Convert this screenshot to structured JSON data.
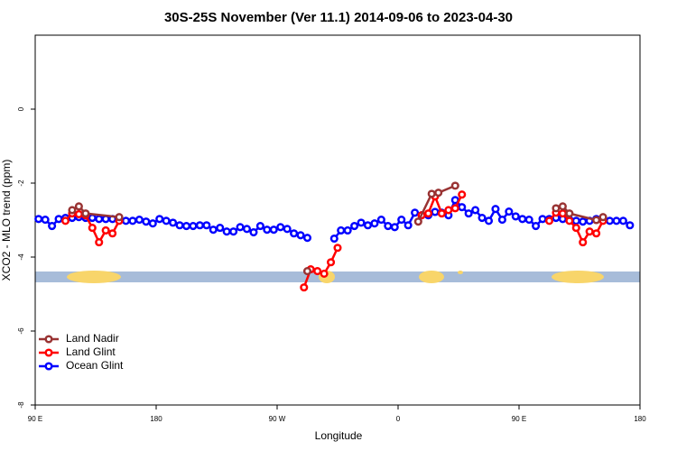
{
  "chart_data": {
    "type": "line",
    "title": "30S-25S November (Ver 11.1)   2014-09-06 to 2023-04-30",
    "x_label": "Longitude",
    "y_label": "XCO2 - MLO trend (ppm)",
    "xlim": [
      90,
      540
    ],
    "ylim": [
      -8,
      2
    ],
    "xticks": [
      {
        "value": 90,
        "label": "90 E"
      },
      180,
      {
        "value": 270,
        "label": "90 W"
      },
      {
        "value": 360,
        "label": "0"
      },
      {
        "value": 450,
        "label": "90 E"
      },
      {
        "value": 540,
        "label": "180"
      }
    ],
    "yticks": [
      -8,
      -6,
      -4,
      -2,
      0
    ],
    "legend": "bottom-left",
    "series": [
      {
        "name": "Land Nadir",
        "color": "#993333",
        "x": [
          117.5,
          122.5,
          127.5,
          152.5,
          200,
          292.5,
          300,
          375,
          385,
          390,
          402.5,
          450,
          477.5,
          482.5,
          487.5,
          507.5,
          512.5
        ],
        "values": [
          -2.73,
          -2.63,
          -2.82,
          -2.92,
          null,
          -4.38,
          null,
          -3.04,
          -2.29,
          -2.26,
          -2.07,
          null,
          -2.68,
          -2.63,
          -2.82,
          -3.0,
          -2.92
        ]
      },
      {
        "name": "Land Glint",
        "color": "#ff0000",
        "x": [
          112.5,
          117.5,
          122.5,
          127.5,
          132.5,
          137.5,
          142.5,
          147.5,
          152.5,
          157.5,
          290,
          295,
          300,
          305,
          310,
          315,
          320,
          377.5,
          382.5,
          387.5,
          392.5,
          397.5,
          402.5,
          407.5,
          412.5,
          472.5,
          477.5,
          482.5,
          487.5,
          492.5,
          497.5,
          502.5,
          507.5,
          512.5
        ],
        "values": [
          -3.02,
          -2.82,
          -2.84,
          -2.87,
          -3.21,
          -3.6,
          -3.28,
          -3.36,
          -3.02,
          null,
          -4.82,
          -4.33,
          -4.38,
          -4.45,
          -4.14,
          -3.75,
          null,
          -2.87,
          -2.82,
          -2.36,
          -2.82,
          -2.73,
          -2.68,
          -2.31,
          null,
          -3.02,
          -2.8,
          -2.82,
          -3.02,
          -3.21,
          -3.6,
          -3.31,
          -3.36,
          -3.02
        ]
      },
      {
        "name": "Ocean Glint",
        "color": "#0000ff",
        "x": [
          92.5,
          97.5,
          102.5,
          107.5,
          112.5,
          117.5,
          122.5,
          127.5,
          132.5,
          137.5,
          142.5,
          147.5,
          152.5,
          157.5,
          162.5,
          167.5,
          172.5,
          177.5,
          182.5,
          187.5,
          192.5,
          197.5,
          202.5,
          207.5,
          212.5,
          217.5,
          222.5,
          227.5,
          232.5,
          237.5,
          242.5,
          247.5,
          252.5,
          257.5,
          262.5,
          267.5,
          272.5,
          277.5,
          282.5,
          287.5,
          292.5,
          297.5,
          302.5,
          307.5,
          312.5,
          317.5,
          322.5,
          327.5,
          332.5,
          337.5,
          342.5,
          347.5,
          352.5,
          357.5,
          362.5,
          367.5,
          372.5,
          377.5,
          382.5,
          387.5,
          392.5,
          397.5,
          402.5,
          407.5,
          412.5,
          417.5,
          422.5,
          427.5,
          432.5,
          437.5,
          442.5,
          447.5,
          452.5,
          457.5,
          462.5,
          467.5,
          472.5,
          477.5,
          482.5,
          487.5,
          492.5,
          497.5,
          502.5,
          507.5,
          512.5,
          517.5,
          522.5,
          527.5,
          532.5
        ],
        "values": [
          -2.97,
          -2.99,
          -3.16,
          -2.97,
          -2.94,
          -2.94,
          -2.92,
          -2.94,
          -2.94,
          -2.97,
          -2.97,
          -2.97,
          -2.97,
          -3.02,
          -3.02,
          -2.99,
          -3.04,
          -3.09,
          -2.97,
          -3.02,
          -3.07,
          -3.14,
          -3.16,
          -3.16,
          -3.14,
          -3.14,
          -3.26,
          -3.21,
          -3.31,
          -3.31,
          -3.19,
          -3.24,
          -3.33,
          -3.16,
          -3.26,
          -3.26,
          -3.19,
          -3.24,
          -3.36,
          -3.41,
          -3.48,
          null,
          null,
          null,
          -3.5,
          -3.28,
          -3.28,
          -3.16,
          -3.07,
          -3.14,
          -3.09,
          -2.99,
          -3.16,
          -3.19,
          -2.99,
          -3.14,
          -2.8,
          -2.87,
          -2.87,
          -2.78,
          -2.8,
          -2.87,
          -2.46,
          -2.65,
          -2.82,
          -2.73,
          -2.94,
          -3.02,
          -2.7,
          -2.99,
          -2.77,
          -2.9,
          -2.97,
          -2.99,
          -3.16,
          -2.97,
          -2.97,
          -2.94,
          -2.97,
          -2.99,
          -3.02,
          -3.04,
          -3.02,
          -2.97,
          -2.94,
          -3.02,
          -3.02,
          -3.02,
          -3.14
        ]
      }
    ]
  }
}
